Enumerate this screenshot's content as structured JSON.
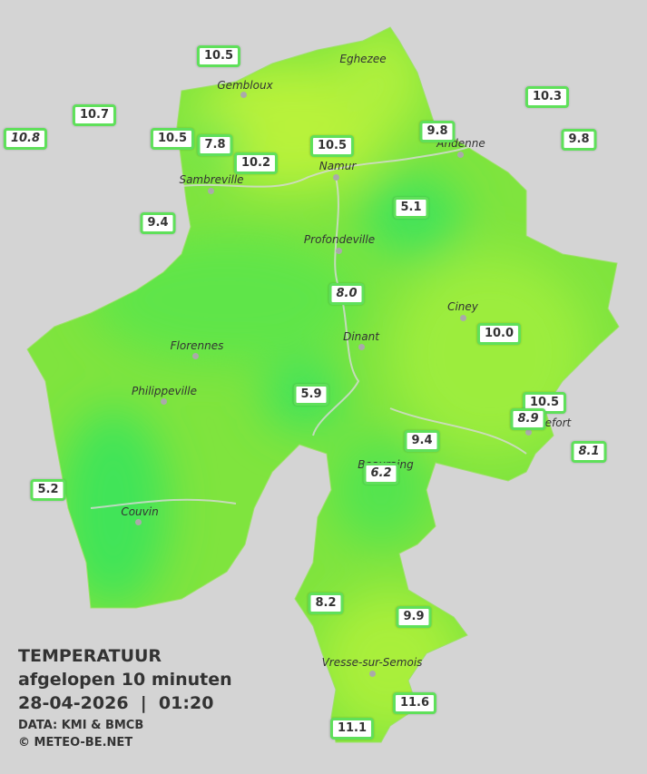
{
  "title": "TEMPERATUUR",
  "subtitle": "afgelopen 10 minuten",
  "timestamp": "28-04-2026  |  01:20",
  "source": "DATA: KMI & BMCB",
  "credit": "© METEO-BE.NET",
  "towns": [
    "Eghezee",
    "Gembloux",
    "Andenne",
    "Namur",
    "Sambreville",
    "Profondeville",
    "Ciney",
    "Dinant",
    "Florennes",
    "Philippeville",
    "Rochefort",
    "Beauraing",
    "Couvin",
    "Vresse-sur-Semois"
  ],
  "stations": [
    {
      "label": "10.5",
      "italic": false
    },
    {
      "label": "10.7",
      "italic": false
    },
    {
      "label": "10.8",
      "italic": true
    },
    {
      "label": "10.5",
      "italic": false
    },
    {
      "label": "7.8",
      "italic": false
    },
    {
      "label": "10.2",
      "italic": false
    },
    {
      "label": "10.5",
      "italic": false
    },
    {
      "label": "9.8",
      "italic": false
    },
    {
      "label": "10.3",
      "italic": false
    },
    {
      "label": "9.8",
      "italic": false
    },
    {
      "label": "9.4",
      "italic": false
    },
    {
      "label": "5.1",
      "italic": false
    },
    {
      "label": "8.0",
      "italic": true
    },
    {
      "label": "10.0",
      "italic": false
    },
    {
      "label": "5.9",
      "italic": false
    },
    {
      "label": "10.5",
      "italic": false
    },
    {
      "label": "8.9",
      "italic": true
    },
    {
      "label": "8.1",
      "italic": true
    },
    {
      "label": "9.4",
      "italic": false
    },
    {
      "label": "6.2",
      "italic": true
    },
    {
      "label": "5.2",
      "italic": false
    },
    {
      "label": "8.2",
      "italic": false
    },
    {
      "label": "9.9",
      "italic": false
    },
    {
      "label": "11.6",
      "italic": false
    },
    {
      "label": "11.1",
      "italic": false
    }
  ]
}
